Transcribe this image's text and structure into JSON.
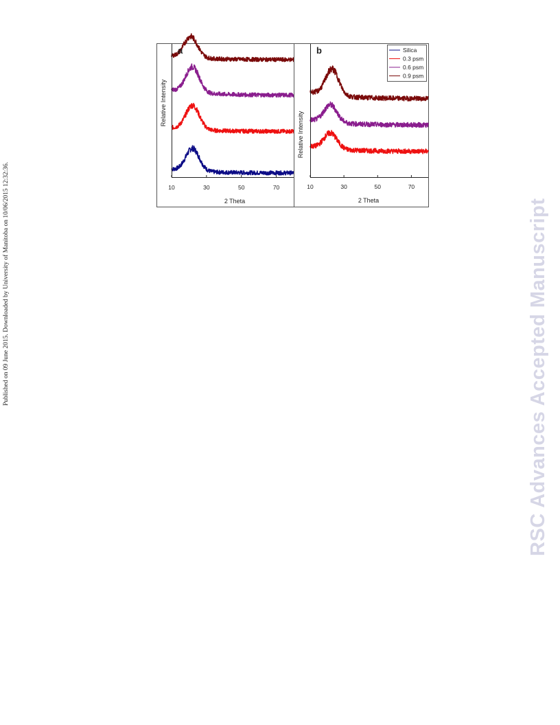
{
  "sidebar_text": "Published on 09 June 2015. Downloaded by University of Manitoba on 10/06/2015 12:32:36.",
  "watermark": "RSC Advances Accepted Manuscript",
  "colors": {
    "silica": "#0c0c86",
    "psm_0_3": "#ee1111",
    "psm_0_6": "#8a1e8e",
    "psm_0_9": "#7a0a0a"
  },
  "chart_data": [
    {
      "type": "line",
      "panel_label": "a",
      "xlabel": "2 Theta",
      "ylabel": "Relative Intensity",
      "xlim": [
        10,
        80
      ],
      "xticks": [
        10,
        30,
        50,
        70
      ],
      "grid": false,
      "y_units": "arbitrary (curves vertically offset)",
      "series": [
        {
          "name": "Silica",
          "color": "#0c0c86",
          "peak_2theta": 22,
          "baseline": 0.05,
          "peak_height": 0.3,
          "high_angle_level": 0.0
        },
        {
          "name": "0.3 psm",
          "color": "#ee1111",
          "peak_2theta": 22,
          "baseline": 0.6,
          "peak_height": 0.32,
          "high_angle_level": 0.55
        },
        {
          "name": "0.6 psm",
          "color": "#8a1e8e",
          "peak_2theta": 22,
          "baseline": 1.1,
          "peak_height": 0.34,
          "high_angle_level": 1.03
        },
        {
          "name": "0.9 psm",
          "color": "#7a0a0a",
          "peak_2theta": 21,
          "baseline": 1.55,
          "peak_height": 0.28,
          "high_angle_level": 1.5
        }
      ]
    },
    {
      "type": "line",
      "panel_label": "b",
      "xlabel": "2 Theta",
      "ylabel": "Relative Intensity",
      "xlim": [
        10,
        80
      ],
      "xticks": [
        10,
        30,
        50,
        70
      ],
      "grid": false,
      "legend": {
        "placement": "top-right",
        "entries": [
          "Silica",
          "0.3 psm",
          "0.6 psm",
          "0.9 psm"
        ]
      },
      "y_units": "arbitrary (curves vertically offset)",
      "series": [
        {
          "name": "0.3 psm",
          "color": "#ee1111",
          "peak_2theta": 22,
          "baseline": 0.18,
          "peak_height": 0.18,
          "high_angle_level": 0.12
        },
        {
          "name": "0.6 psm",
          "color": "#8a1e8e",
          "peak_2theta": 22,
          "baseline": 0.48,
          "peak_height": 0.2,
          "high_angle_level": 0.42
        },
        {
          "name": "0.9 psm",
          "color": "#7a0a0a",
          "peak_2theta": 23,
          "baseline": 0.8,
          "peak_height": 0.3,
          "high_angle_level": 0.72
        }
      ]
    }
  ]
}
